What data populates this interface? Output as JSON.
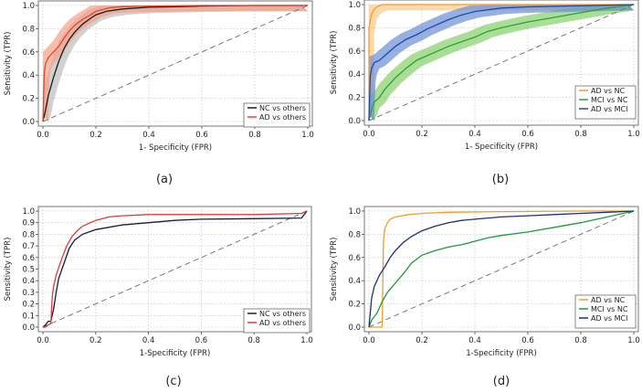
{
  "chart_data": [
    {
      "id": "a",
      "type": "line",
      "caption": "(a)",
      "xlabel": "1- Specificity (FPR)",
      "ylabel": "Sensitivity (TPR)",
      "xlim": [
        0,
        1
      ],
      "ylim": [
        0,
        1
      ],
      "xticks": [
        "0.0",
        "0.2",
        "0.4",
        "0.6",
        "0.8",
        "1.0"
      ],
      "yticks": [
        "0.0",
        "0.2",
        "0.4",
        "0.6",
        "0.8",
        "1.0"
      ],
      "grid": true,
      "legend_position": "bottom-right",
      "diagonal": true,
      "series": [
        {
          "name": "NC vs others",
          "color": "#1a1a1a",
          "band": "#bdbdbd",
          "x": [
            0,
            0.01,
            0.02,
            0.04,
            0.06,
            0.08,
            0.1,
            0.12,
            0.15,
            0.18,
            0.2,
            0.24,
            0.3,
            0.4,
            0.5,
            0.6,
            0.8,
            1.0
          ],
          "y": [
            0,
            0.1,
            0.22,
            0.38,
            0.52,
            0.63,
            0.71,
            0.77,
            0.84,
            0.89,
            0.92,
            0.95,
            0.97,
            0.985,
            0.99,
            0.995,
            1.0,
            1.0
          ]
        },
        {
          "name": "AD vs others",
          "color": "#e8452a",
          "band": "#f4a28c",
          "x": [
            0,
            0.005,
            0.01,
            0.02,
            0.04,
            0.06,
            0.08,
            0.1,
            0.12,
            0.15,
            0.18,
            0.2,
            0.25,
            0.3,
            0.4,
            0.6,
            1.0
          ],
          "y": [
            0,
            0.42,
            0.5,
            0.55,
            0.6,
            0.65,
            0.72,
            0.78,
            0.83,
            0.88,
            0.92,
            0.95,
            0.98,
            0.99,
            0.995,
            1.0,
            1.0
          ]
        }
      ]
    },
    {
      "id": "b",
      "type": "line",
      "caption": "(b)",
      "xlabel": "1- Specificity (FPR)",
      "ylabel": "Sensitivity (TPR)",
      "xlim": [
        0,
        1
      ],
      "ylim": [
        0,
        1
      ],
      "xticks": [
        "0.0",
        "0.2",
        "0.4",
        "0.6",
        "0.8",
        "1.0"
      ],
      "yticks": [
        "0.0",
        "0.2",
        "0.4",
        "0.6",
        "0.8",
        "1.0"
      ],
      "grid": true,
      "legend_position": "bottom-right",
      "diagonal": true,
      "series": [
        {
          "name": "AD vs NC",
          "color": "#f39c2b",
          "band": "#f8c98a",
          "x": [
            0,
            0.0,
            0.01,
            0.02,
            0.03,
            0.04,
            0.05,
            0.1,
            1.0
          ],
          "y": [
            0,
            0.8,
            0.92,
            0.96,
            0.98,
            0.99,
            1.0,
            1.0,
            1.0
          ]
        },
        {
          "name": "MCI vs NC",
          "color": "#2e9e3a",
          "band": "#86d06a",
          "x": [
            0,
            0.01,
            0.02,
            0.04,
            0.06,
            0.08,
            0.1,
            0.14,
            0.18,
            0.22,
            0.26,
            0.3,
            0.35,
            0.4,
            0.45,
            0.5,
            0.6,
            0.7,
            0.8,
            0.9,
            1.0
          ],
          "y": [
            0,
            0.1,
            0.16,
            0.2,
            0.27,
            0.32,
            0.37,
            0.45,
            0.52,
            0.56,
            0.6,
            0.64,
            0.68,
            0.72,
            0.77,
            0.8,
            0.85,
            0.89,
            0.93,
            0.97,
            1.0
          ]
        },
        {
          "name": "AD vs MCI",
          "color": "#2347a8",
          "band": "#6a8fd6",
          "x": [
            0,
            0.005,
            0.01,
            0.02,
            0.04,
            0.06,
            0.08,
            0.1,
            0.14,
            0.18,
            0.22,
            0.26,
            0.3,
            0.35,
            0.4,
            0.5,
            0.6,
            0.8,
            1.0
          ],
          "y": [
            0,
            0.38,
            0.45,
            0.5,
            0.52,
            0.56,
            0.6,
            0.64,
            0.7,
            0.74,
            0.79,
            0.83,
            0.87,
            0.91,
            0.94,
            0.97,
            0.98,
            0.99,
            1.0
          ]
        }
      ]
    },
    {
      "id": "c",
      "type": "line",
      "caption": "(c)",
      "xlabel": "1-Specificity (FPR)",
      "ylabel": "Sensitivity (TPR)",
      "xlim": [
        0,
        1
      ],
      "ylim": [
        0,
        1
      ],
      "xticks": [
        "0.0",
        "0.2",
        "0.4",
        "0.6",
        "0.8",
        "1.0"
      ],
      "yticks": [
        "0.0",
        "0.1",
        "0.2",
        "0.3",
        "0.4",
        "0.5",
        "0.6",
        "0.7",
        "0.8",
        "0.9",
        "1.0"
      ],
      "grid": true,
      "legend_position": "bottom-right",
      "diagonal": true,
      "series": [
        {
          "name": "NC vs others",
          "color": "#1c1c3a",
          "x": [
            0,
            0.01,
            0.02,
            0.03,
            0.04,
            0.05,
            0.06,
            0.08,
            0.1,
            0.12,
            0.15,
            0.2,
            0.3,
            0.4,
            0.5,
            0.6,
            0.8,
            0.98,
            1.0
          ],
          "y": [
            0,
            0.02,
            0.05,
            0.05,
            0.15,
            0.3,
            0.42,
            0.55,
            0.68,
            0.75,
            0.8,
            0.84,
            0.88,
            0.9,
            0.92,
            0.93,
            0.935,
            0.94,
            1.0
          ]
        },
        {
          "name": "AD vs others",
          "color": "#e03a3a",
          "x": [
            0,
            0.01,
            0.02,
            0.03,
            0.035,
            0.04,
            0.05,
            0.07,
            0.09,
            0.11,
            0.13,
            0.15,
            0.2,
            0.25,
            0.3,
            0.4,
            0.6,
            0.8,
            0.98,
            1.0
          ],
          "y": [
            0,
            0.0,
            0.02,
            0.03,
            0.25,
            0.35,
            0.45,
            0.58,
            0.7,
            0.78,
            0.83,
            0.87,
            0.92,
            0.95,
            0.96,
            0.97,
            0.97,
            0.97,
            0.98,
            1.0
          ]
        }
      ]
    },
    {
      "id": "d",
      "type": "line",
      "caption": "(d)",
      "xlabel": "1-Specificity (FPR)",
      "ylabel": "Sensitivity (TPR)",
      "xlim": [
        0,
        1
      ],
      "ylim": [
        0,
        1
      ],
      "xticks": [
        "0.0",
        "0.2",
        "0.4",
        "0.6",
        "0.8",
        "1.0"
      ],
      "yticks": [
        "0.0",
        "0.2",
        "0.4",
        "0.6",
        "0.8",
        "1.0"
      ],
      "grid": true,
      "legend_position": "bottom-right",
      "diagonal": true,
      "series": [
        {
          "name": "AD vs NC",
          "color": "#f39c2b",
          "x": [
            0,
            0.05,
            0.055,
            0.06,
            0.07,
            0.08,
            0.1,
            0.15,
            0.2,
            0.3,
            0.5,
            0.8,
            1.0
          ],
          "y": [
            0,
            0.0,
            0.75,
            0.85,
            0.9,
            0.93,
            0.95,
            0.97,
            0.98,
            0.99,
            0.995,
            1.0,
            1.0
          ]
        },
        {
          "name": "MCI vs NC",
          "color": "#1f9a3a",
          "x": [
            0,
            0.01,
            0.03,
            0.05,
            0.07,
            0.1,
            0.13,
            0.16,
            0.2,
            0.25,
            0.3,
            0.35,
            0.4,
            0.45,
            0.5,
            0.6,
            0.7,
            0.8,
            0.9,
            1.0
          ],
          "y": [
            0,
            0.06,
            0.12,
            0.22,
            0.3,
            0.38,
            0.46,
            0.55,
            0.62,
            0.66,
            0.69,
            0.71,
            0.74,
            0.77,
            0.79,
            0.82,
            0.86,
            0.9,
            0.95,
            1.0
          ]
        },
        {
          "name": "AD vs MCI",
          "color": "#1e2f7a",
          "x": [
            0,
            0.005,
            0.01,
            0.02,
            0.04,
            0.06,
            0.08,
            0.1,
            0.13,
            0.16,
            0.2,
            0.25,
            0.3,
            0.35,
            0.4,
            0.5,
            0.6,
            0.7,
            0.8,
            0.9,
            1.0
          ],
          "y": [
            0,
            0.12,
            0.25,
            0.35,
            0.45,
            0.52,
            0.6,
            0.66,
            0.73,
            0.78,
            0.83,
            0.87,
            0.9,
            0.92,
            0.93,
            0.95,
            0.96,
            0.97,
            0.98,
            0.99,
            1.0
          ]
        }
      ]
    }
  ]
}
